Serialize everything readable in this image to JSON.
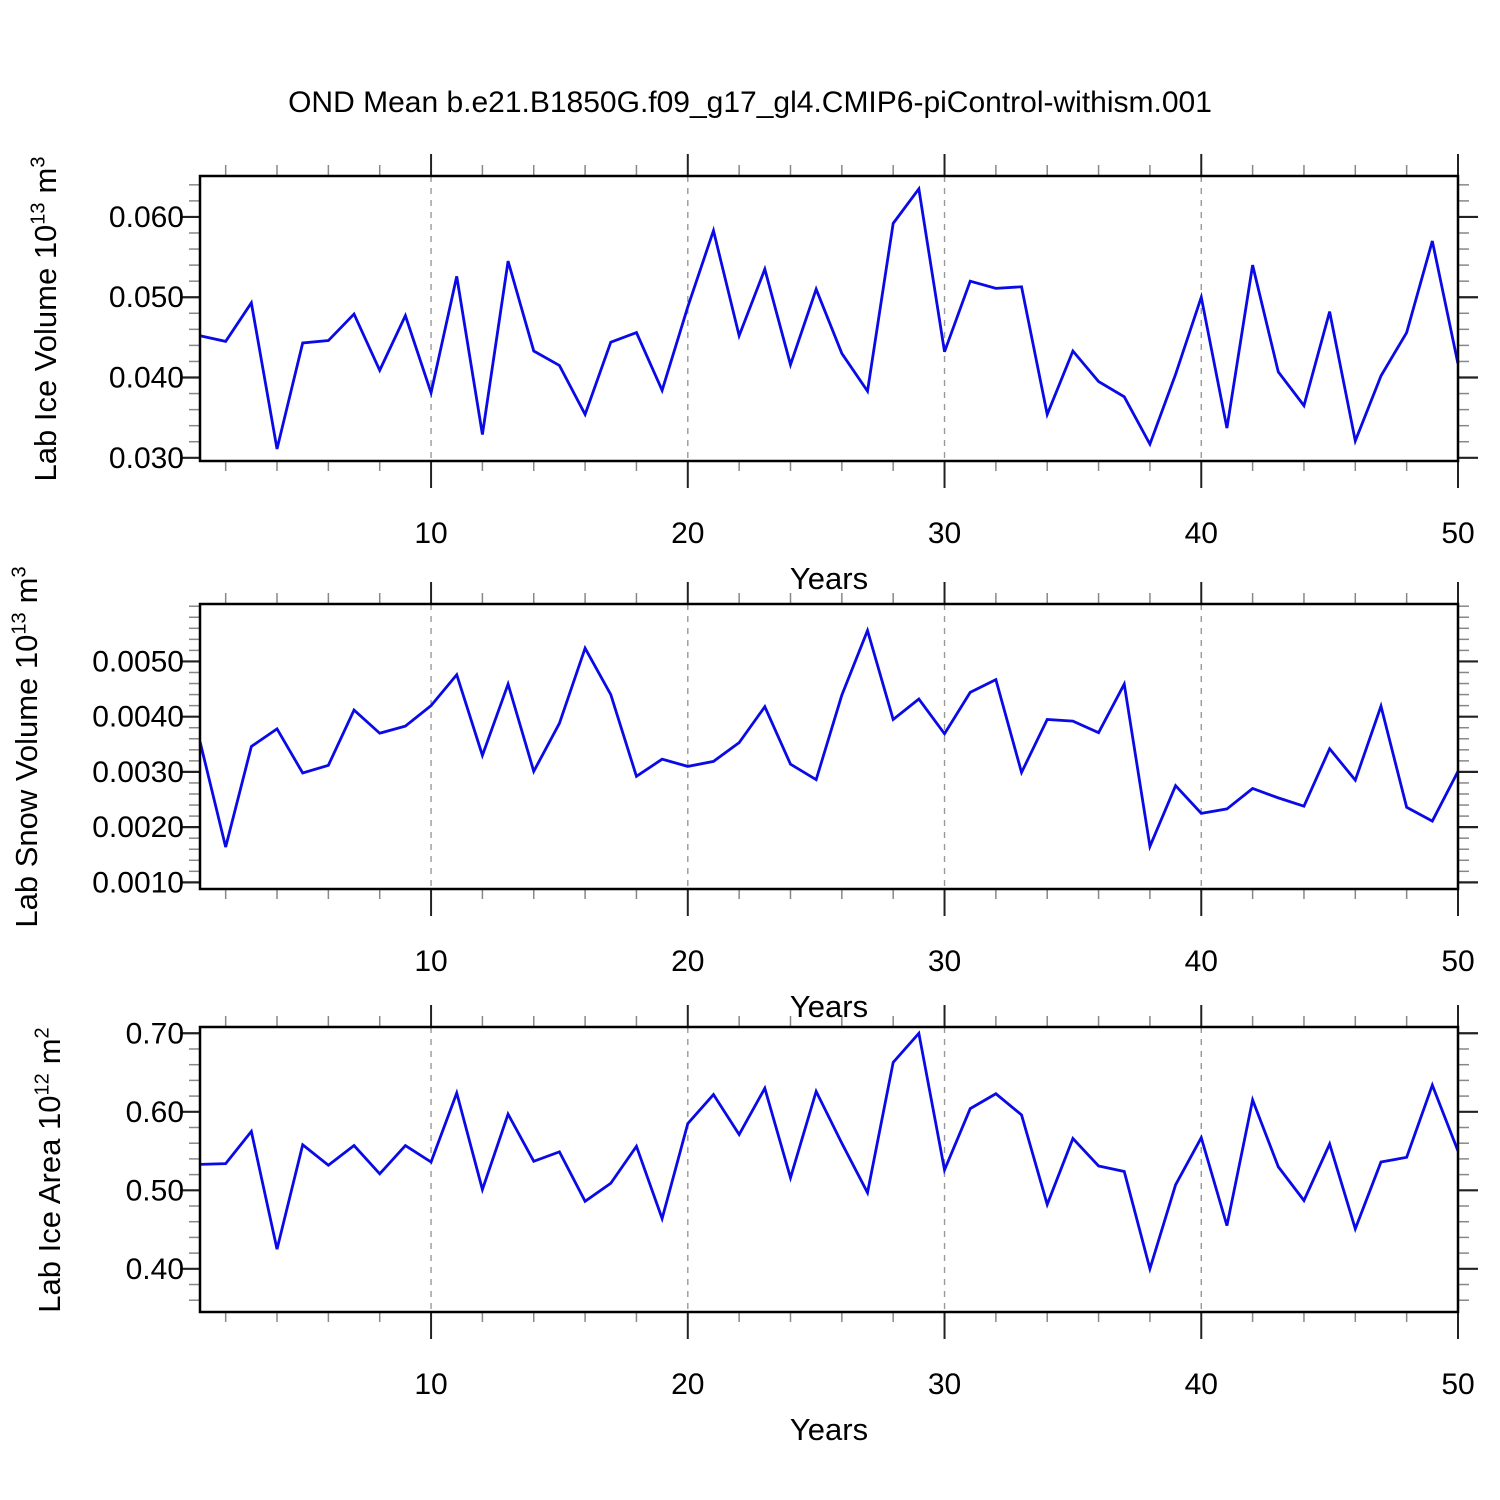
{
  "title": "OND Mean b.e21.B1850G.f09_g17_gl4.CMIP6-piControl-withism.001",
  "colors": {
    "line": "#0A0AE6",
    "grid": "#999999",
    "axis": "#000000",
    "minor_tick": "#888888",
    "major_tick": "#222222"
  },
  "chart_data": [
    {
      "type": "line",
      "panel": "top",
      "ylabel_parts": {
        "text": "Lab Ice Volume 10",
        "exp": "13",
        "unit": "m",
        "unit_exp": "3"
      },
      "xlabel": "Years",
      "x": {
        "start": 1,
        "step": 1,
        "count": 50
      },
      "values": [
        0.0452,
        0.0445,
        0.0493,
        0.0311,
        0.0443,
        0.0446,
        0.0479,
        0.0409,
        0.0477,
        0.0381,
        0.0526,
        0.0329,
        0.0545,
        0.0433,
        0.0415,
        0.0354,
        0.0444,
        0.0456,
        0.0384,
        0.0488,
        0.0583,
        0.0452,
        0.0535,
        0.0416,
        0.051,
        0.043,
        0.0383,
        0.0592,
        0.0635,
        0.0432,
        0.052,
        0.0511,
        0.0513,
        0.0354,
        0.0433,
        0.0395,
        0.0376,
        0.0317,
        0.0404,
        0.05,
        0.0337,
        0.054,
        0.0407,
        0.0365,
        0.0482,
        0.0321,
        0.0402,
        0.0456,
        0.057,
        0.0417
      ],
      "xlim": [
        1,
        50
      ],
      "ylim": [
        0.0296,
        0.0651
      ],
      "xticks": [
        10,
        20,
        30,
        40,
        50
      ],
      "x_minor_step": 2,
      "yticks": [
        0.03,
        0.04,
        0.05,
        0.06
      ],
      "ytick_labels": [
        "0.030",
        "0.040",
        "0.050",
        "0.060"
      ],
      "y_minor_step": 0.002,
      "grid_x": [
        10,
        20,
        30,
        40
      ],
      "grid": "vertical-dashed",
      "legend": "none"
    },
    {
      "type": "line",
      "panel": "middle",
      "ylabel_parts": {
        "text": "Lab Snow Volume 10",
        "exp": "13",
        "unit": "m",
        "unit_exp": "3"
      },
      "xlabel": "Years",
      "x": {
        "start": 1,
        "step": 1,
        "count": 50
      },
      "values": [
        0.00355,
        0.00164,
        0.00346,
        0.00378,
        0.00298,
        0.00312,
        0.00412,
        0.0037,
        0.00383,
        0.0042,
        0.00476,
        0.0033,
        0.00459,
        0.00301,
        0.00388,
        0.00524,
        0.0044,
        0.00292,
        0.00323,
        0.0031,
        0.00319,
        0.00353,
        0.00418,
        0.00314,
        0.00286,
        0.00439,
        0.00556,
        0.00395,
        0.00432,
        0.00369,
        0.00444,
        0.00467,
        0.00299,
        0.00395,
        0.00392,
        0.00371,
        0.00459,
        0.00165,
        0.00275,
        0.00225,
        0.00233,
        0.0027,
        0.00253,
        0.00238,
        0.00342,
        0.00285,
        0.00419,
        0.00236,
        0.00211,
        0.00301
      ],
      "xlim": [
        1,
        50
      ],
      "ylim": [
        0.00088,
        0.00604
      ],
      "xticks": [
        10,
        20,
        30,
        40,
        50
      ],
      "x_minor_step": 2,
      "yticks": [
        0.001,
        0.002,
        0.003,
        0.004,
        0.005
      ],
      "ytick_labels": [
        "0.0010",
        "0.0020",
        "0.0030",
        "0.0040",
        "0.0050"
      ],
      "y_minor_step": 0.0002,
      "grid_x": [
        10,
        20,
        30,
        40
      ],
      "grid": "vertical-dashed",
      "legend": "none"
    },
    {
      "type": "line",
      "panel": "bottom",
      "ylabel_parts": {
        "text": "Lab Ice Area 10",
        "exp": "12",
        "unit": "m",
        "unit_exp": "2"
      },
      "xlabel": "Years",
      "x": {
        "start": 1,
        "step": 1,
        "count": 50
      },
      "values": [
        0.533,
        0.534,
        0.575,
        0.425,
        0.558,
        0.532,
        0.557,
        0.521,
        0.557,
        0.536,
        0.624,
        0.501,
        0.597,
        0.537,
        0.549,
        0.486,
        0.509,
        0.556,
        0.464,
        0.585,
        0.622,
        0.571,
        0.63,
        0.516,
        0.626,
        0.56,
        0.497,
        0.663,
        0.7,
        0.526,
        0.604,
        0.623,
        0.596,
        0.482,
        0.566,
        0.531,
        0.524,
        0.4,
        0.507,
        0.567,
        0.455,
        0.615,
        0.53,
        0.487,
        0.559,
        0.451,
        0.536,
        0.542,
        0.634,
        0.55
      ],
      "xlim": [
        1,
        50
      ],
      "ylim": [
        0.345,
        0.708
      ],
      "xticks": [
        10,
        20,
        30,
        40,
        50
      ],
      "x_minor_step": 2,
      "yticks": [
        0.4,
        0.5,
        0.6,
        0.7
      ],
      "ytick_labels": [
        "0.40",
        "0.50",
        "0.60",
        "0.70"
      ],
      "y_minor_step": 0.02,
      "grid_x": [
        10,
        20,
        30,
        40
      ],
      "grid": "vertical-dashed",
      "legend": "none"
    }
  ]
}
